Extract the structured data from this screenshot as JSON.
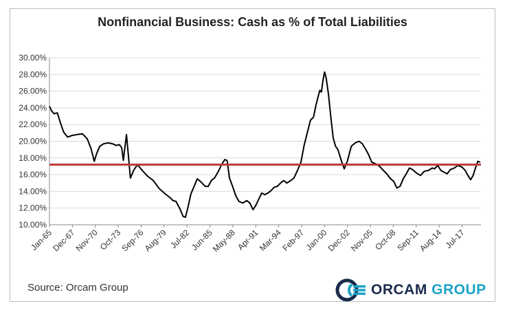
{
  "chart_data": {
    "type": "line",
    "title": "Nonfinancial Business: Cash as % of Total Liabilities",
    "xlabel": "",
    "ylabel": "",
    "ylim": [
      10,
      30
    ],
    "y_ticks": [
      "10.00%",
      "12.00%",
      "14.00%",
      "16.00%",
      "18.00%",
      "20.00%",
      "22.00%",
      "24.00%",
      "26.00%",
      "28.00%",
      "30.00%"
    ],
    "x_ticks": [
      "Jan-65",
      "Dec-67",
      "Nov-70",
      "Oct-73",
      "Sep-76",
      "Aug-79",
      "Jul-82",
      "Jun-85",
      "May-88",
      "Apr-91",
      "Mar-94",
      "Feb-97",
      "Jan-00",
      "Dec-02",
      "Nov-05",
      "Oct-08",
      "Sep-11",
      "Aug-14",
      "Jul-17"
    ],
    "x_tick_years": [
      1965.0,
      1967.92,
      1970.83,
      1973.75,
      1976.67,
      1979.58,
      1982.5,
      1985.42,
      1988.33,
      1991.25,
      1994.17,
      1997.08,
      2000.0,
      2002.92,
      2005.83,
      2008.75,
      2011.67,
      2014.58,
      2017.5
    ],
    "xlim": [
      1965.0,
      2019.9
    ],
    "grid": "horizontal",
    "series": [
      {
        "color": "#000000",
        "x": [
          1965.0,
          1965.3,
          1965.6,
          1966.0,
          1966.4,
          1966.8,
          1967.3,
          1967.9,
          1968.5,
          1969.2,
          1969.8,
          1970.3,
          1970.7,
          1971.0,
          1971.4,
          1971.9,
          1972.5,
          1973.0,
          1973.5,
          1973.9,
          1974.2,
          1974.4,
          1974.8,
          1975.3,
          1975.7,
          1976.2,
          1976.8,
          1977.5,
          1978.2,
          1979.0,
          1979.6,
          1980.0,
          1980.4,
          1980.7,
          1981.1,
          1981.6,
          1982.0,
          1982.3,
          1982.6,
          1983.0,
          1983.4,
          1983.8,
          1984.3,
          1984.8,
          1985.2,
          1985.6,
          1986.0,
          1986.5,
          1986.9,
          1987.3,
          1987.6,
          1987.9,
          1988.3,
          1988.7,
          1989.1,
          1989.6,
          1990.1,
          1990.5,
          1990.9,
          1991.3,
          1991.7,
          1992.0,
          1992.4,
          1992.8,
          1993.2,
          1993.6,
          1994.0,
          1994.4,
          1994.8,
          1995.2,
          1995.7,
          1996.1,
          1996.6,
          1997.0,
          1997.4,
          1997.8,
          1998.2,
          1998.6,
          1998.9,
          1999.2,
          1999.4,
          1999.6,
          1999.8,
          2000.0,
          2000.2,
          2000.5,
          2000.8,
          2001.1,
          2001.4,
          2001.7,
          2002.0,
          2002.2,
          2002.5,
          2002.9,
          2003.4,
          2003.9,
          2004.4,
          2004.8,
          2005.2,
          2005.6,
          2006.0,
          2006.5,
          2007.0,
          2007.5,
          2008.0,
          2008.4,
          2008.8,
          2009.2,
          2009.6,
          2010.0,
          2010.4,
          2010.8,
          2011.2,
          2011.7,
          2012.2,
          2012.7,
          2013.2,
          2013.7,
          2014.0,
          2014.4,
          2014.8,
          2015.2,
          2015.6,
          2016.0,
          2016.5,
          2017.0,
          2017.5,
          2017.9,
          2018.3,
          2018.6,
          2018.9,
          2019.2,
          2019.5,
          2019.8
        ],
        "y": [
          24.2,
          23.6,
          23.3,
          23.4,
          22.2,
          21.1,
          20.5,
          20.7,
          20.8,
          20.9,
          20.3,
          19.1,
          17.6,
          18.5,
          19.4,
          19.7,
          19.8,
          19.7,
          19.5,
          19.6,
          19.2,
          17.7,
          20.8,
          15.6,
          16.5,
          17.2,
          16.5,
          15.8,
          15.3,
          14.3,
          13.8,
          13.5,
          13.2,
          12.9,
          12.8,
          11.9,
          11.0,
          10.9,
          12.0,
          13.7,
          14.6,
          15.5,
          15.1,
          14.6,
          14.6,
          15.3,
          15.6,
          16.4,
          17.2,
          17.8,
          17.7,
          15.6,
          14.6,
          13.5,
          12.8,
          12.6,
          12.9,
          12.6,
          11.8,
          12.4,
          13.2,
          13.8,
          13.6,
          13.8,
          14.1,
          14.5,
          14.6,
          15.0,
          15.3,
          15.0,
          15.3,
          15.6,
          16.6,
          17.5,
          19.5,
          21.0,
          22.5,
          22.9,
          24.3,
          25.4,
          26.1,
          25.9,
          27.3,
          28.3,
          27.6,
          25.6,
          22.9,
          20.4,
          19.4,
          19.0,
          18.1,
          17.5,
          16.7,
          17.6,
          19.4,
          19.8,
          20.0,
          19.7,
          19.1,
          18.4,
          17.5,
          17.3,
          17.0,
          16.5,
          16.0,
          15.5,
          15.2,
          14.4,
          14.6,
          15.5,
          16.1,
          16.8,
          16.6,
          16.2,
          15.9,
          16.4,
          16.5,
          16.8,
          16.7,
          17.1,
          16.5,
          16.3,
          16.1,
          16.6,
          16.8,
          17.1,
          16.9,
          16.5,
          15.8,
          15.4,
          15.9,
          16.8,
          17.6,
          17.5
        ]
      }
    ],
    "reference_line": {
      "value": 17.2,
      "color": "#c0393b"
    }
  },
  "footer": {
    "source": "Source: Orcam Group",
    "logo_word1": "ORCAM",
    "logo_word2": "GROUP"
  },
  "colors": {
    "line": "#000000",
    "reference": "#c0393b",
    "grid": "#d9d9d9",
    "logo_dark": "#1a2b4c",
    "logo_light": "#1fa3c7"
  }
}
